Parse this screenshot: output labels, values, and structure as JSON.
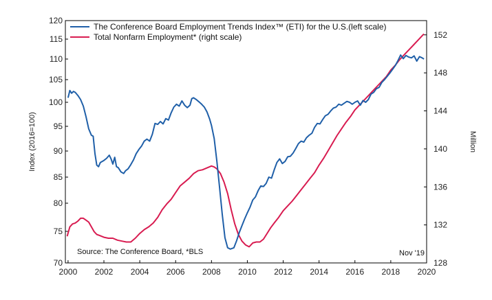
{
  "chart_data": {
    "type": "line",
    "title": "",
    "ylabel_left": "Index (2016=100)",
    "ylabel_right": "Million",
    "source_note": "Source: The Conference Board, *BLS",
    "date_note": "Nov '19",
    "x_ticks": [
      2000,
      2002,
      2004,
      2006,
      2008,
      2010,
      2012,
      2014,
      2016,
      2018,
      2020
    ],
    "x_tick_labels": [
      "2000",
      "2002",
      "2004",
      "2006",
      "2008",
      "2010",
      "2012",
      "2014",
      "2016",
      "2018",
      "2020"
    ],
    "xlim": [
      1999.85,
      2020.0
    ],
    "ylim_left": [
      70,
      120
    ],
    "y_ticks_left": [
      70,
      75,
      80,
      85,
      90,
      95,
      100,
      105,
      110,
      115,
      120
    ],
    "y_tick_labels_left": [
      "70",
      "75",
      "80",
      "85",
      "90",
      "95",
      "100",
      "105",
      "110",
      "115",
      "120"
    ],
    "ylim_right": [
      128,
      153.5
    ],
    "y_ticks_right": [
      128,
      132,
      136,
      140,
      144,
      148,
      152
    ],
    "y_tick_labels_right": [
      "128",
      "132",
      "136",
      "140",
      "144",
      "148",
      "152"
    ],
    "grid": false,
    "legend_position": "top-left",
    "series": [
      {
        "name": "The Conference Board Employment Trends Index™ (ETI) for the U.S.(left scale)",
        "axis": "left",
        "color": "#1f5fa8",
        "points": [
          [
            2000.0,
            101.0
          ],
          [
            2000.1,
            102.6
          ],
          [
            2000.2,
            102.0
          ],
          [
            2000.3,
            102.4
          ],
          [
            2000.4,
            102.2
          ],
          [
            2000.55,
            101.5
          ],
          [
            2000.7,
            100.6
          ],
          [
            2000.85,
            99.2
          ],
          [
            2001.0,
            97.0
          ],
          [
            2001.15,
            94.5
          ],
          [
            2001.3,
            93.2
          ],
          [
            2001.4,
            93.0
          ],
          [
            2001.5,
            89.5
          ],
          [
            2001.6,
            87.3
          ],
          [
            2001.7,
            87.0
          ],
          [
            2001.8,
            87.8
          ],
          [
            2001.9,
            88.0
          ],
          [
            2002.0,
            88.2
          ],
          [
            2002.15,
            88.6
          ],
          [
            2002.3,
            89.2
          ],
          [
            2002.4,
            88.5
          ],
          [
            2002.5,
            87.5
          ],
          [
            2002.6,
            88.8
          ],
          [
            2002.7,
            87.0
          ],
          [
            2002.8,
            86.8
          ],
          [
            2002.95,
            86.0
          ],
          [
            2003.1,
            85.7
          ],
          [
            2003.2,
            86.2
          ],
          [
            2003.35,
            86.6
          ],
          [
            2003.5,
            87.4
          ],
          [
            2003.65,
            88.3
          ],
          [
            2003.8,
            89.5
          ],
          [
            2003.95,
            90.3
          ],
          [
            2004.1,
            91.0
          ],
          [
            2004.25,
            92.0
          ],
          [
            2004.4,
            92.4
          ],
          [
            2004.55,
            92.0
          ],
          [
            2004.7,
            93.4
          ],
          [
            2004.85,
            95.6
          ],
          [
            2005.0,
            95.4
          ],
          [
            2005.15,
            96.0
          ],
          [
            2005.3,
            95.5
          ],
          [
            2005.45,
            96.6
          ],
          [
            2005.6,
            96.3
          ],
          [
            2005.75,
            97.8
          ],
          [
            2005.9,
            99.0
          ],
          [
            2006.05,
            99.6
          ],
          [
            2006.2,
            99.2
          ],
          [
            2006.35,
            100.3
          ],
          [
            2006.5,
            99.4
          ],
          [
            2006.65,
            98.9
          ],
          [
            2006.8,
            99.4
          ],
          [
            2006.9,
            100.8
          ],
          [
            2007.0,
            101.0
          ],
          [
            2007.15,
            100.6
          ],
          [
            2007.3,
            100.1
          ],
          [
            2007.45,
            99.6
          ],
          [
            2007.6,
            99.0
          ],
          [
            2007.75,
            98.0
          ],
          [
            2007.9,
            96.5
          ],
          [
            2008.0,
            95.2
          ],
          [
            2008.15,
            92.5
          ],
          [
            2008.3,
            88.0
          ],
          [
            2008.45,
            83.0
          ],
          [
            2008.6,
            78.0
          ],
          [
            2008.75,
            74.0
          ],
          [
            2008.9,
            72.4
          ],
          [
            2009.05,
            72.2
          ],
          [
            2009.25,
            72.4
          ],
          [
            2009.4,
            73.5
          ],
          [
            2009.55,
            74.8
          ],
          [
            2009.7,
            76.0
          ],
          [
            2009.85,
            77.2
          ],
          [
            2010.0,
            78.3
          ],
          [
            2010.15,
            79.3
          ],
          [
            2010.3,
            80.6
          ],
          [
            2010.45,
            81.2
          ],
          [
            2010.6,
            82.4
          ],
          [
            2010.75,
            83.3
          ],
          [
            2010.9,
            83.2
          ],
          [
            2011.05,
            83.8
          ],
          [
            2011.2,
            85.0
          ],
          [
            2011.35,
            84.8
          ],
          [
            2011.5,
            86.4
          ],
          [
            2011.65,
            87.8
          ],
          [
            2011.8,
            88.5
          ],
          [
            2011.95,
            87.6
          ],
          [
            2012.1,
            88.0
          ],
          [
            2012.25,
            88.9
          ],
          [
            2012.4,
            89.0
          ],
          [
            2012.55,
            89.6
          ],
          [
            2012.7,
            90.5
          ],
          [
            2012.85,
            91.5
          ],
          [
            2013.0,
            92.0
          ],
          [
            2013.15,
            91.8
          ],
          [
            2013.3,
            92.7
          ],
          [
            2013.45,
            93.2
          ],
          [
            2013.6,
            93.6
          ],
          [
            2013.75,
            94.8
          ],
          [
            2013.9,
            95.6
          ],
          [
            2014.05,
            95.5
          ],
          [
            2014.2,
            96.4
          ],
          [
            2014.35,
            97.2
          ],
          [
            2014.5,
            97.5
          ],
          [
            2014.65,
            98.2
          ],
          [
            2014.8,
            98.8
          ],
          [
            2014.95,
            99.0
          ],
          [
            2015.1,
            99.6
          ],
          [
            2015.25,
            99.4
          ],
          [
            2015.4,
            99.8
          ],
          [
            2015.55,
            100.2
          ],
          [
            2015.7,
            100.0
          ],
          [
            2015.85,
            99.6
          ],
          [
            2016.0,
            100.0
          ],
          [
            2016.15,
            100.3
          ],
          [
            2016.3,
            99.4
          ],
          [
            2016.45,
            100.4
          ],
          [
            2016.6,
            100.0
          ],
          [
            2016.75,
            100.6
          ],
          [
            2016.9,
            101.8
          ],
          [
            2017.05,
            102.2
          ],
          [
            2017.2,
            103.0
          ],
          [
            2017.35,
            103.3
          ],
          [
            2017.5,
            104.4
          ],
          [
            2017.65,
            105.0
          ],
          [
            2017.8,
            105.8
          ],
          [
            2017.95,
            106.6
          ],
          [
            2018.1,
            107.5
          ],
          [
            2018.25,
            108.4
          ],
          [
            2018.4,
            109.6
          ],
          [
            2018.55,
            111.0
          ],
          [
            2018.7,
            110.1
          ],
          [
            2018.85,
            110.9
          ],
          [
            2019.0,
            110.5
          ],
          [
            2019.15,
            110.3
          ],
          [
            2019.3,
            110.8
          ],
          [
            2019.45,
            109.5
          ],
          [
            2019.6,
            110.6
          ],
          [
            2019.75,
            110.3
          ],
          [
            2019.85,
            110.0
          ]
        ]
      },
      {
        "name": "Total Nonfarm Employment* (right scale)",
        "axis": "right",
        "color": "#d81b50",
        "points": [
          [
            1999.95,
            130.8
          ],
          [
            2000.1,
            131.8
          ],
          [
            2000.25,
            132.1
          ],
          [
            2000.4,
            132.2
          ],
          [
            2000.55,
            132.4
          ],
          [
            2000.7,
            132.7
          ],
          [
            2000.85,
            132.7
          ],
          [
            2001.0,
            132.5
          ],
          [
            2001.15,
            132.3
          ],
          [
            2001.3,
            131.8
          ],
          [
            2001.45,
            131.3
          ],
          [
            2001.6,
            131.0
          ],
          [
            2001.75,
            130.9
          ],
          [
            2002.0,
            130.7
          ],
          [
            2002.25,
            130.6
          ],
          [
            2002.5,
            130.6
          ],
          [
            2002.75,
            130.4
          ],
          [
            2003.0,
            130.3
          ],
          [
            2003.25,
            130.2
          ],
          [
            2003.5,
            130.2
          ],
          [
            2003.75,
            130.6
          ],
          [
            2004.0,
            131.1
          ],
          [
            2004.25,
            131.5
          ],
          [
            2004.5,
            131.8
          ],
          [
            2004.75,
            132.2
          ],
          [
            2005.0,
            132.8
          ],
          [
            2005.25,
            133.6
          ],
          [
            2005.5,
            134.2
          ],
          [
            2005.75,
            134.7
          ],
          [
            2006.0,
            135.4
          ],
          [
            2006.25,
            136.1
          ],
          [
            2006.5,
            136.5
          ],
          [
            2006.75,
            136.9
          ],
          [
            2007.0,
            137.4
          ],
          [
            2007.25,
            137.7
          ],
          [
            2007.5,
            137.8
          ],
          [
            2007.75,
            138.0
          ],
          [
            2008.0,
            138.2
          ],
          [
            2008.15,
            138.1
          ],
          [
            2008.3,
            137.9
          ],
          [
            2008.5,
            137.4
          ],
          [
            2008.7,
            136.5
          ],
          [
            2008.9,
            135.3
          ],
          [
            2009.1,
            133.6
          ],
          [
            2009.3,
            132.1
          ],
          [
            2009.5,
            131.0
          ],
          [
            2009.7,
            130.3
          ],
          [
            2009.9,
            129.9
          ],
          [
            2010.1,
            129.7
          ],
          [
            2010.3,
            130.1
          ],
          [
            2010.5,
            130.2
          ],
          [
            2010.7,
            130.2
          ],
          [
            2010.9,
            130.5
          ],
          [
            2011.1,
            131.1
          ],
          [
            2011.3,
            131.7
          ],
          [
            2011.5,
            132.2
          ],
          [
            2011.75,
            132.8
          ],
          [
            2012.0,
            133.5
          ],
          [
            2012.25,
            134.0
          ],
          [
            2012.5,
            134.5
          ],
          [
            2012.75,
            135.1
          ],
          [
            2013.0,
            135.7
          ],
          [
            2013.25,
            136.3
          ],
          [
            2013.5,
            136.9
          ],
          [
            2013.75,
            137.5
          ],
          [
            2014.0,
            138.3
          ],
          [
            2014.25,
            139.0
          ],
          [
            2014.5,
            139.8
          ],
          [
            2014.75,
            140.6
          ],
          [
            2015.0,
            141.4
          ],
          [
            2015.25,
            142.1
          ],
          [
            2015.5,
            142.8
          ],
          [
            2015.75,
            143.4
          ],
          [
            2016.0,
            144.1
          ],
          [
            2016.25,
            144.6
          ],
          [
            2016.5,
            145.1
          ],
          [
            2016.75,
            145.6
          ],
          [
            2017.0,
            146.1
          ],
          [
            2017.25,
            146.6
          ],
          [
            2017.5,
            147.1
          ],
          [
            2017.75,
            147.6
          ],
          [
            2018.0,
            148.3
          ],
          [
            2018.25,
            148.8
          ],
          [
            2018.5,
            149.4
          ],
          [
            2018.75,
            149.9
          ],
          [
            2019.0,
            150.4
          ],
          [
            2019.25,
            150.9
          ],
          [
            2019.5,
            151.4
          ],
          [
            2019.75,
            151.9
          ],
          [
            2019.85,
            152.1
          ]
        ]
      }
    ]
  }
}
